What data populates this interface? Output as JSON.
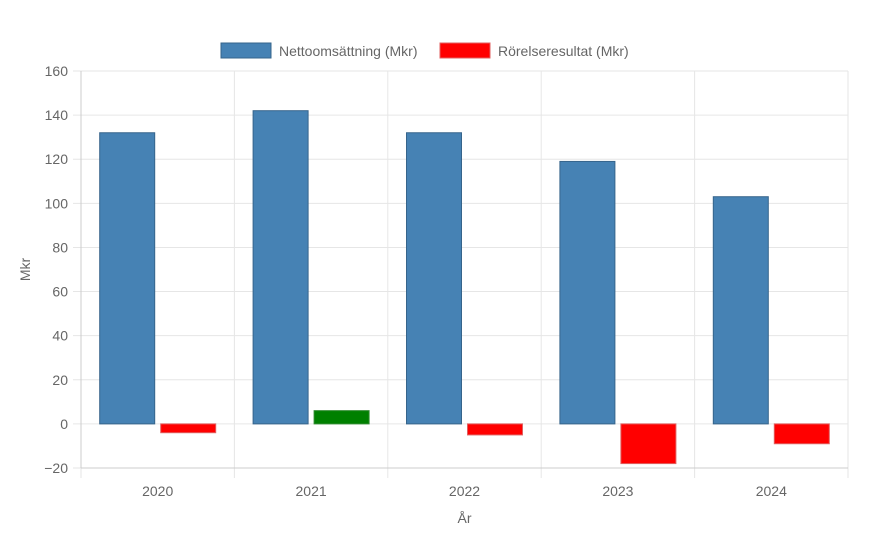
{
  "chart_data": {
    "type": "bar",
    "categories": [
      "2020",
      "2021",
      "2022",
      "2023",
      "2024"
    ],
    "series": [
      {
        "name": "Nettoomsättning (Mkr)",
        "values": [
          132,
          142,
          132,
          119,
          103
        ],
        "color": "#4682b4",
        "border_color": "#36648b"
      },
      {
        "name": "Rörelseresultat (Mkr)",
        "values": [
          -4,
          6,
          -5,
          -18,
          -9
        ],
        "color": "#ff0000",
        "negative_color": "#ff0000",
        "positive_color": "#008000",
        "border_color": "#e06060",
        "positive_border_color": "#2e8b2e"
      }
    ],
    "legend_color": "#ff0000",
    "xlabel": "År",
    "ylabel": "Mkr",
    "ylim": [
      -20,
      160
    ],
    "yticks": [
      -20,
      0,
      20,
      40,
      60,
      80,
      100,
      120,
      140,
      160
    ],
    "ytick_labels": [
      "−20",
      "0",
      "20",
      "40",
      "60",
      "80",
      "100",
      "120",
      "140",
      "160"
    ],
    "grid": true,
    "legend_position": "top-center",
    "grid_color": "#e6e6e6",
    "axis_color": "#cccccc"
  }
}
